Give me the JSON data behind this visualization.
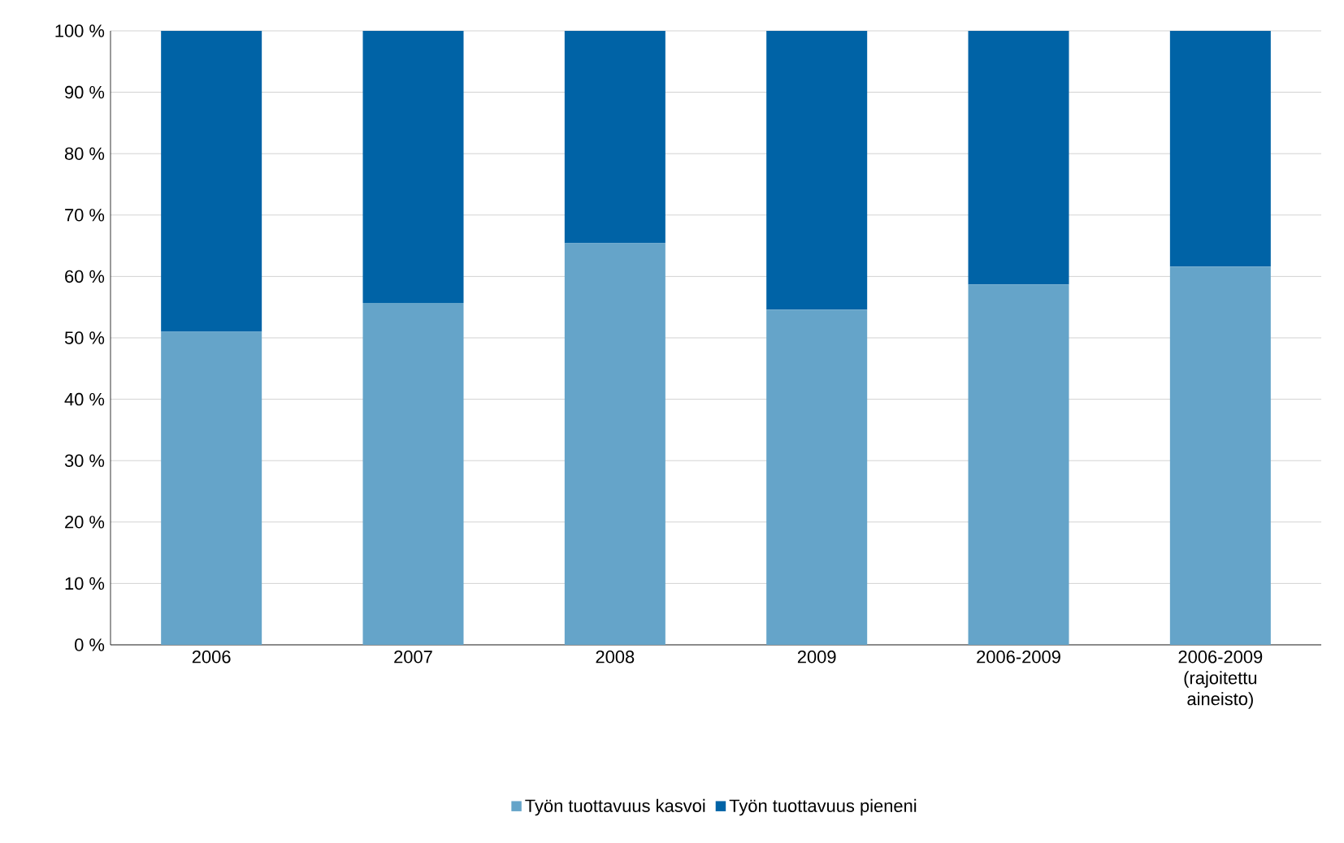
{
  "chart_data": {
    "type": "bar",
    "stacked": true,
    "categories": [
      "2006",
      "2007",
      "2008",
      "2009",
      "2006-2009",
      "2006-2009 (rajoitettu aineisto)"
    ],
    "series": [
      {
        "name": "Työn tuottavuus kasvoi",
        "color": "#65a4c9",
        "values": [
          51,
          55.7,
          65.4,
          54.6,
          58.7,
          61.6
        ]
      },
      {
        "name": "Työn tuottavuus pieneni",
        "color": "#0063a6",
        "values": [
          49,
          44.3,
          34.6,
          45.4,
          41.3,
          38.4
        ]
      }
    ],
    "ylim": [
      0,
      100
    ],
    "yticks": [
      {
        "value": 0,
        "label": "0 %"
      },
      {
        "value": 10,
        "label": "10 %"
      },
      {
        "value": 20,
        "label": "20 %"
      },
      {
        "value": 30,
        "label": "30 %"
      },
      {
        "value": 40,
        "label": "40 %"
      },
      {
        "value": 50,
        "label": "50 %"
      },
      {
        "value": 60,
        "label": "60 %"
      },
      {
        "value": 70,
        "label": "70 %"
      },
      {
        "value": 80,
        "label": "80 %"
      },
      {
        "value": 90,
        "label": "90 %"
      },
      {
        "value": 100,
        "label": "100 %"
      }
    ],
    "grid": "y",
    "legend": "bottom"
  }
}
